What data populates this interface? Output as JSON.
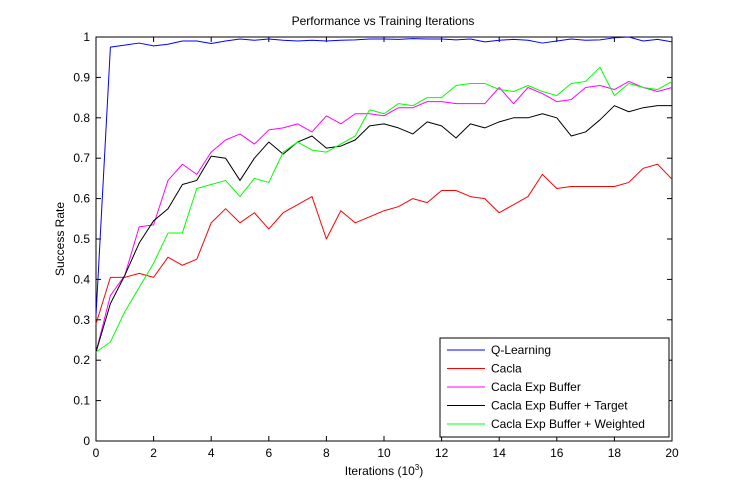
{
  "chart_data": {
    "type": "line",
    "title": "Performance vs Training Iterations",
    "xlabel": "Iterations (10",
    "xlabel_exponent": "3",
    "xlabel_suffix": ")",
    "ylabel": "Success Rate",
    "xlim": [
      0,
      20
    ],
    "ylim": [
      0,
      1
    ],
    "x_ticks": [
      0,
      2,
      4,
      6,
      8,
      10,
      12,
      14,
      16,
      18,
      20
    ],
    "y_ticks": [
      0,
      0.1,
      0.2,
      0.3,
      0.4,
      0.5,
      0.6,
      0.7,
      0.8,
      0.9,
      1
    ],
    "y_tick_labels": [
      "0",
      "0.1",
      "0.2",
      "0.3",
      "0.4",
      "0.5",
      "0.6",
      "0.7",
      "0.8",
      "0.9",
      "1"
    ],
    "grid": false,
    "legend_position": "bottom-right",
    "x": [
      0,
      0.5,
      1,
      1.5,
      2,
      2.5,
      3,
      3.5,
      4,
      4.5,
      5,
      5.5,
      6,
      6.5,
      7,
      7.5,
      8,
      8.5,
      9,
      9.5,
      10,
      10.5,
      11,
      11.5,
      12,
      12.5,
      13,
      13.5,
      14,
      14.5,
      15,
      15.5,
      16,
      16.5,
      17,
      17.5,
      18,
      18.5,
      19,
      19.5,
      20
    ],
    "series": [
      {
        "name": "Q-Learning",
        "color": "#0000ff",
        "values": [
          0.31,
          0.975,
          0.98,
          0.985,
          0.978,
          0.982,
          0.99,
          0.99,
          0.984,
          0.99,
          0.995,
          0.992,
          0.995,
          0.992,
          0.99,
          0.992,
          0.99,
          0.992,
          0.993,
          0.995,
          0.995,
          0.994,
          0.996,
          0.995,
          0.995,
          0.993,
          0.995,
          0.988,
          0.992,
          0.994,
          0.992,
          0.985,
          0.99,
          0.995,
          0.992,
          0.993,
          0.998,
          1.0,
          0.99,
          0.994,
          0.988
        ]
      },
      {
        "name": "Cacla",
        "color": "#ff0000",
        "values": [
          0.29,
          0.405,
          0.405,
          0.415,
          0.405,
          0.455,
          0.435,
          0.45,
          0.54,
          0.575,
          0.54,
          0.565,
          0.525,
          0.565,
          0.585,
          0.605,
          0.5,
          0.57,
          0.54,
          0.555,
          0.57,
          0.58,
          0.6,
          0.59,
          0.62,
          0.62,
          0.605,
          0.6,
          0.565,
          0.585,
          0.605,
          0.66,
          0.625,
          0.63,
          0.63,
          0.63,
          0.63,
          0.64,
          0.675,
          0.685,
          0.648
        ]
      },
      {
        "name": "Cacla Exp Buffer",
        "color": "#ff00ff",
        "values": [
          0.22,
          0.36,
          0.41,
          0.53,
          0.535,
          0.645,
          0.685,
          0.66,
          0.715,
          0.745,
          0.76,
          0.735,
          0.77,
          0.775,
          0.785,
          0.765,
          0.805,
          0.785,
          0.81,
          0.81,
          0.805,
          0.825,
          0.825,
          0.84,
          0.84,
          0.835,
          0.835,
          0.835,
          0.875,
          0.835,
          0.875,
          0.86,
          0.84,
          0.845,
          0.875,
          0.88,
          0.87,
          0.89,
          0.875,
          0.865,
          0.875
        ]
      },
      {
        "name": "Cacla Exp Buffer + Target",
        "color": "#000000",
        "values": [
          0.22,
          0.34,
          0.41,
          0.49,
          0.545,
          0.575,
          0.635,
          0.645,
          0.705,
          0.7,
          0.645,
          0.7,
          0.74,
          0.71,
          0.74,
          0.755,
          0.725,
          0.73,
          0.745,
          0.78,
          0.785,
          0.775,
          0.76,
          0.79,
          0.78,
          0.75,
          0.785,
          0.775,
          0.79,
          0.8,
          0.8,
          0.81,
          0.8,
          0.755,
          0.765,
          0.795,
          0.83,
          0.815,
          0.825,
          0.83,
          0.83
        ]
      },
      {
        "name": "Cacla Exp Buffer + Weighted",
        "color": "#00ff00",
        "values": [
          0.22,
          0.245,
          0.32,
          0.38,
          0.44,
          0.515,
          0.515,
          0.625,
          0.635,
          0.645,
          0.605,
          0.65,
          0.64,
          0.715,
          0.74,
          0.72,
          0.715,
          0.735,
          0.755,
          0.82,
          0.81,
          0.835,
          0.83,
          0.85,
          0.85,
          0.88,
          0.885,
          0.885,
          0.87,
          0.865,
          0.88,
          0.865,
          0.855,
          0.885,
          0.89,
          0.925,
          0.855,
          0.885,
          0.875,
          0.87,
          0.89
        ]
      }
    ]
  }
}
